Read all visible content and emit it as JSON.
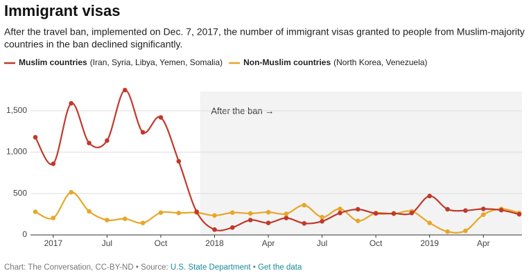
{
  "chart_data": {
    "type": "line",
    "title": "Immigrant visas",
    "subtitle": [
      "After the travel ban, implemented on Dec. 7, 2017, the number of immigrant visas granted to people from Muslim-majority",
      "countries in the ban declined significantly."
    ],
    "annotation": "After the ban →",
    "categories": [
      null,
      "2017",
      null,
      null,
      "Jul",
      null,
      null,
      "Oct",
      null,
      null,
      "2018",
      null,
      null,
      "Apr",
      null,
      null,
      "Jul",
      null,
      null,
      "Oct",
      null,
      null,
      "2019",
      null,
      null,
      "Apr",
      null,
      null
    ],
    "series": [
      {
        "name": "Muslim countries",
        "description": "(Iran, Syria, Libya, Yemen, Somalia)",
        "color": "#c0392b",
        "values": [
          1180,
          860,
          1590,
          1110,
          1140,
          1750,
          1240,
          1420,
          890,
          280,
          65,
          90,
          180,
          145,
          205,
          140,
          165,
          265,
          310,
          260,
          260,
          265,
          470,
          310,
          295,
          315,
          300,
          250
        ]
      },
      {
        "name": "Non-Muslim countries",
        "description": "(North Korea, Venezuela)",
        "color": "#e8a628",
        "values": [
          280,
          205,
          515,
          285,
          180,
          195,
          145,
          270,
          265,
          270,
          235,
          270,
          260,
          275,
          255,
          360,
          215,
          315,
          170,
          265,
          255,
          285,
          145,
          40,
          50,
          245,
          315,
          265
        ]
      }
    ],
    "ylim": [
      0,
      1800
    ],
    "yticks": [
      0,
      500,
      {
        "value": 1000,
        "label": "1,000"
      },
      {
        "value": 1500,
        "label": "1,500"
      }
    ],
    "grid": true,
    "footer": {
      "credit": "Chart: The Conversation, CC-BY-ND",
      "separator": "•",
      "source_label": "Source:",
      "source": "U.S. State Department",
      "link": "Get the data"
    }
  }
}
